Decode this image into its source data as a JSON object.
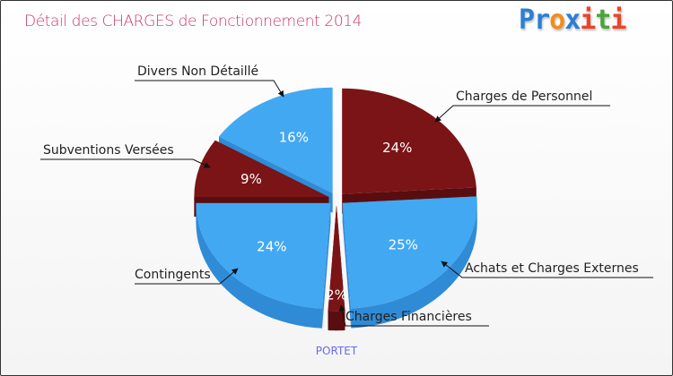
{
  "title": "Détail des CHARGES de Fonctionnement 2014",
  "logo": {
    "text": "Proxiti",
    "letters": [
      [
        "P",
        "#2a7fd4"
      ],
      [
        "r",
        "#2a7fd4"
      ],
      [
        "o",
        "#f28c1e"
      ],
      [
        "x",
        "#2a7fd4"
      ],
      [
        "i",
        "#e8452a"
      ],
      [
        "t",
        "#4aa33a"
      ],
      [
        "i",
        "#e8452a"
      ]
    ]
  },
  "footer": "PORTET",
  "chart_data": {
    "type": "pie",
    "title": "Détail des CHARGES de Fonctionnement 2014",
    "unit": "%",
    "colors": {
      "blue": "#42a8f2",
      "blue_side": "#2f8bd6",
      "red": "#7b1416",
      "red_side": "#5a0d0f"
    },
    "slices": [
      {
        "label": "Charges de Personnel",
        "value": 24,
        "pct_label": "24%",
        "color": "red"
      },
      {
        "label": "Achats et Charges Externes",
        "value": 25,
        "pct_label": "25%",
        "color": "blue"
      },
      {
        "label": "Charges Financières",
        "value": 2,
        "pct_label": "2%",
        "color": "red"
      },
      {
        "label": "Contingents",
        "value": 24,
        "pct_label": "24%",
        "color": "blue"
      },
      {
        "label": "Subventions Versées",
        "value": 9,
        "pct_label": "9%",
        "color": "red"
      },
      {
        "label": "Divers Non Détaillé",
        "value": 16,
        "pct_label": "16%",
        "color": "blue"
      }
    ]
  }
}
